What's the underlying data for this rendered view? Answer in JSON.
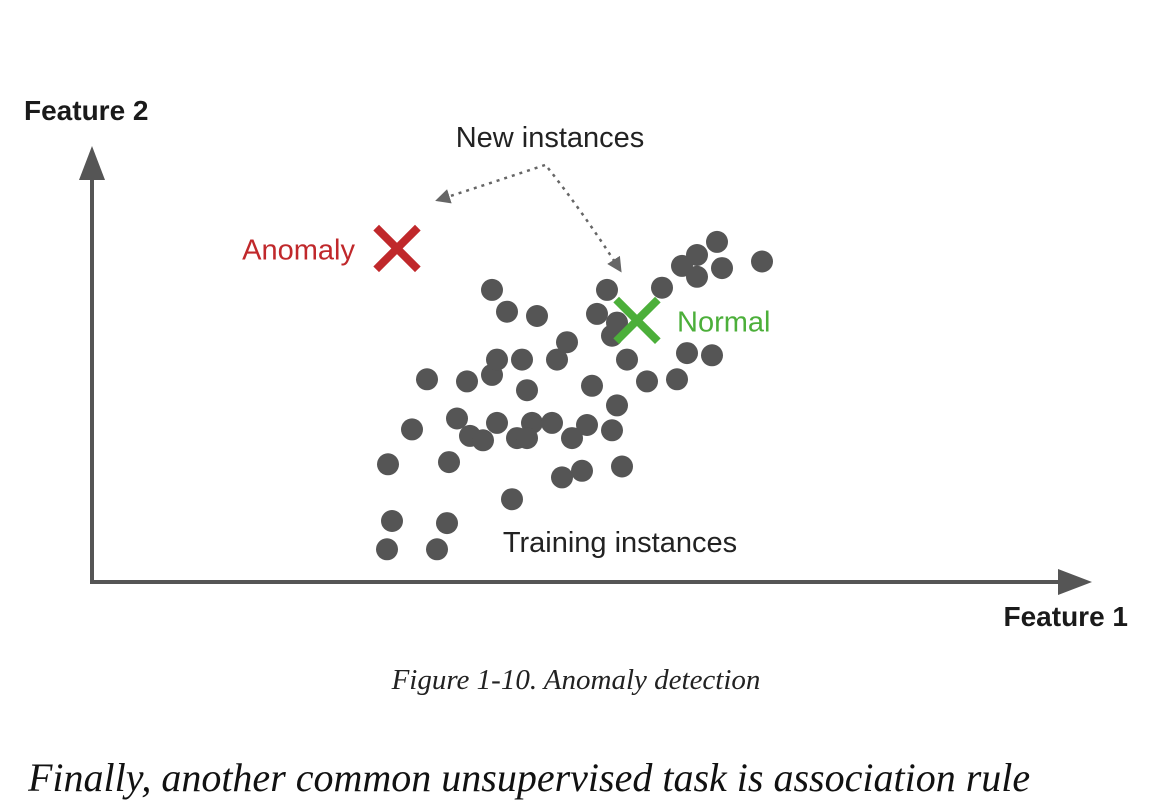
{
  "chart_data": {
    "type": "scatter",
    "xlabel": "Feature 1",
    "ylabel": "Feature 2",
    "xlim": [
      0,
      100
    ],
    "ylim": [
      0,
      100
    ],
    "grid": false,
    "colors": {
      "points": "#555555",
      "anomaly": "#c0282b",
      "normal": "#4caf3a",
      "axis": "#555555",
      "text": "#222222"
    },
    "series": [
      {
        "points": [
          [
            29.5,
            7.5
          ],
          [
            34.5,
            7.5
          ],
          [
            30,
            14
          ],
          [
            35.5,
            13.5
          ],
          [
            42,
            19
          ],
          [
            47,
            24
          ],
          [
            29.6,
            27
          ],
          [
            35.7,
            27.5
          ],
          [
            49,
            25.5
          ],
          [
            53,
            26.5
          ],
          [
            32,
            35
          ],
          [
            36.5,
            37.5
          ],
          [
            37.8,
            33.5
          ],
          [
            39.1,
            32.5
          ],
          [
            40.5,
            36.5
          ],
          [
            42.5,
            33
          ],
          [
            44,
            36.5
          ],
          [
            46,
            36.5
          ],
          [
            43.5,
            33
          ],
          [
            48,
            33
          ],
          [
            49.5,
            36
          ],
          [
            52,
            34.8
          ],
          [
            33.5,
            46.5
          ],
          [
            37.5,
            46
          ],
          [
            40,
            47.5
          ],
          [
            40.5,
            51
          ],
          [
            43.5,
            44
          ],
          [
            43,
            51
          ],
          [
            46.5,
            51
          ],
          [
            50,
            45
          ],
          [
            52.5,
            40.5
          ],
          [
            47.5,
            55
          ],
          [
            52,
            56.5
          ],
          [
            53.5,
            51
          ],
          [
            55.5,
            46
          ],
          [
            58.5,
            46.5
          ],
          [
            59.5,
            52.5
          ],
          [
            62,
            52
          ],
          [
            41.5,
            62
          ],
          [
            44.5,
            61
          ],
          [
            40,
            67
          ],
          [
            50.5,
            61.5
          ],
          [
            52.5,
            59.5
          ],
          [
            51.5,
            67
          ],
          [
            57,
            67.5
          ],
          [
            59,
            72.5
          ],
          [
            60.5,
            70
          ],
          [
            63,
            72
          ],
          [
            60.5,
            75
          ],
          [
            62.5,
            78
          ],
          [
            67,
            73.5
          ]
        ]
      }
    ],
    "markers": [
      {
        "label": "Anomaly",
        "x": 30.5,
        "y": 76.5
      },
      {
        "label": "Normal",
        "x": 54.5,
        "y": 60
      }
    ],
    "annotations": [
      "New instances",
      "Training instances"
    ]
  },
  "caption": "Figure 1-10. Anomaly detection",
  "body_text": "Finally, another common unsupervised task is association rule"
}
